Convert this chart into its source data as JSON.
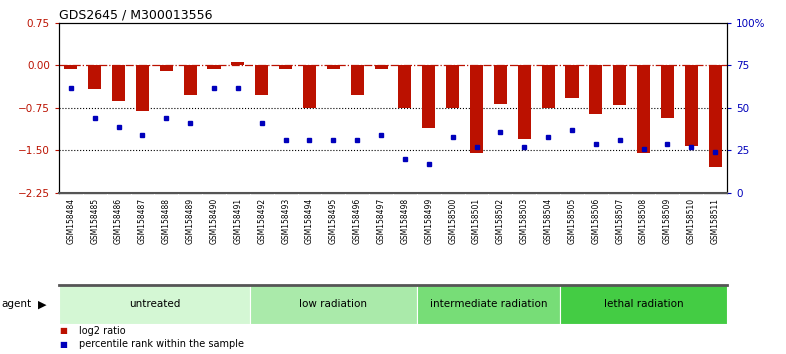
{
  "title": "GDS2645 / M300013556",
  "samples": [
    "GSM158484",
    "GSM158485",
    "GSM158486",
    "GSM158487",
    "GSM158488",
    "GSM158489",
    "GSM158490",
    "GSM158491",
    "GSM158492",
    "GSM158493",
    "GSM158494",
    "GSM158495",
    "GSM158496",
    "GSM158497",
    "GSM158498",
    "GSM158499",
    "GSM158500",
    "GSM158501",
    "GSM158502",
    "GSM158503",
    "GSM158504",
    "GSM158505",
    "GSM158506",
    "GSM158507",
    "GSM158508",
    "GSM158509",
    "GSM158510",
    "GSM158511"
  ],
  "log2_ratio": [
    -0.07,
    -0.42,
    -0.62,
    -0.8,
    -0.1,
    -0.52,
    -0.07,
    0.06,
    -0.52,
    -0.07,
    -0.75,
    -0.07,
    -0.52,
    -0.07,
    -0.75,
    -1.1,
    -0.75,
    -1.55,
    -0.68,
    -1.3,
    -0.75,
    -0.58,
    -0.85,
    -0.7,
    -1.55,
    -0.92,
    -1.42,
    -1.8
  ],
  "percentile_rank": [
    62,
    44,
    39,
    34,
    44,
    41,
    62,
    62,
    41,
    31,
    31,
    31,
    31,
    34,
    20,
    17,
    33,
    27,
    36,
    27,
    33,
    37,
    29,
    31,
    26,
    29,
    27,
    24
  ],
  "groups": [
    {
      "label": "untreated",
      "start": 0,
      "end": 8,
      "color": "#d4f7d4"
    },
    {
      "label": "low radiation",
      "start": 8,
      "end": 15,
      "color": "#aaeaaa"
    },
    {
      "label": "intermediate radiation",
      "start": 15,
      "end": 21,
      "color": "#77dd77"
    },
    {
      "label": "lethal radiation",
      "start": 21,
      "end": 28,
      "color": "#44cc44"
    }
  ],
  "bar_color": "#bb1100",
  "dot_color": "#0000bb",
  "bg_color": "#e8e8e8",
  "ylim_left": [
    -2.25,
    0.75
  ],
  "ylim_right": [
    0,
    100
  ],
  "yticks_left": [
    -2.25,
    -1.5,
    -0.75,
    0,
    0.75
  ],
  "yticks_right": [
    0,
    25,
    50,
    75,
    100
  ]
}
